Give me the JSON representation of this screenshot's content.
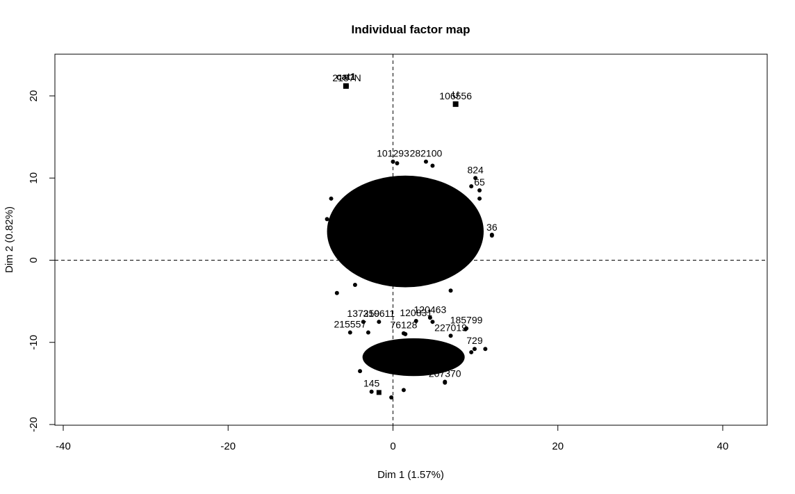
{
  "chart_data": {
    "type": "scatter",
    "title": "Individual factor map",
    "xlabel": "Dim 1 (1.57%)",
    "ylabel": "Dim 2 (0.82%)",
    "xlim": [
      -40,
      45
    ],
    "ylim": [
      -20,
      25
    ],
    "xticks": [
      -40,
      -20,
      0,
      20,
      40
    ],
    "yticks": [
      -20,
      -10,
      0,
      10,
      20
    ],
    "reference_lines": {
      "x": 0,
      "y": 0,
      "style": "dashed"
    },
    "grid": false,
    "legend": "none",
    "colors": {
      "points": "#000000"
    },
    "clusters": [
      {
        "cx": 1.5,
        "cy": 3.5,
        "rx": 9.5,
        "ry": 6.8,
        "note": "dense main cloud"
      },
      {
        "cx": 2.5,
        "cy": -11.8,
        "rx": 6.2,
        "ry": 2.3,
        "note": "dense lower band"
      }
    ],
    "supplementary_categories": [
      {
        "label": "cat1",
        "x": -5.7,
        "y": 21.2,
        "bold": true
      },
      {
        "label": "U",
        "x": 7.6,
        "y": 19.0,
        "bold": false
      }
    ],
    "labeled_points": [
      {
        "label": "101293",
        "x": 0.0,
        "y": 12.0
      },
      {
        "label": "137259",
        "x": -3.6,
        "y": -7.5
      },
      {
        "label": "185799",
        "x": 8.9,
        "y": -8.3
      },
      {
        "label": "120463",
        "x": 4.5,
        "y": -7.0
      },
      {
        "label": "227019",
        "x": 7.0,
        "y": -9.2
      },
      {
        "label": "215557",
        "x": -5.2,
        "y": -8.8
      },
      {
        "label": "207370",
        "x": 6.3,
        "y": -14.8
      },
      {
        "label": "76128",
        "x": 1.3,
        "y": -8.9
      },
      {
        "label": "106556",
        "x": 7.6,
        "y": 19.0
      },
      {
        "label": "2187N",
        "x": -5.6,
        "y": 21.2
      },
      {
        "label": "310611",
        "x": -1.7,
        "y": -7.5
      },
      {
        "label": "120831",
        "x": 2.8,
        "y": -7.4
      },
      {
        "label": "282100",
        "x": 4.0,
        "y": 12.0
      },
      {
        "label": "65",
        "x": 10.5,
        "y": 8.5
      },
      {
        "label": "824",
        "x": 10.0,
        "y": 10.0
      },
      {
        "label": "36",
        "x": 12.0,
        "y": 3.0
      },
      {
        "label": "145",
        "x": -2.6,
        "y": -16.0
      },
      {
        "label": "729",
        "x": 9.9,
        "y": -10.8
      }
    ],
    "outlier_points": [
      {
        "x": -1.7,
        "y": -16.1,
        "shape": "square"
      },
      {
        "x": -0.2,
        "y": -16.7
      },
      {
        "x": 1.3,
        "y": -15.8
      },
      {
        "x": 6.3,
        "y": -14.9
      },
      {
        "x": 8.8,
        "y": -8.4
      },
      {
        "x": 4.8,
        "y": -7.5
      },
      {
        "x": 1.5,
        "y": -9.0
      },
      {
        "x": -3.0,
        "y": -8.8
      },
      {
        "x": 9.5,
        "y": -11.2
      },
      {
        "x": 11.2,
        "y": -10.8
      },
      {
        "x": -4.6,
        "y": -3.0
      },
      {
        "x": 7.0,
        "y": -3.7
      },
      {
        "x": 0.5,
        "y": 11.8
      },
      {
        "x": 4.8,
        "y": 11.5
      },
      {
        "x": 9.5,
        "y": 9.0
      },
      {
        "x": 10.5,
        "y": 7.5
      },
      {
        "x": 12.0,
        "y": 3.1
      },
      {
        "x": -7.5,
        "y": 7.5
      },
      {
        "x": -8.0,
        "y": 5.0
      },
      {
        "x": -6.8,
        "y": -4.0
      },
      {
        "x": 3.0,
        "y": -13.8
      },
      {
        "x": -4.0,
        "y": -13.5
      }
    ]
  }
}
